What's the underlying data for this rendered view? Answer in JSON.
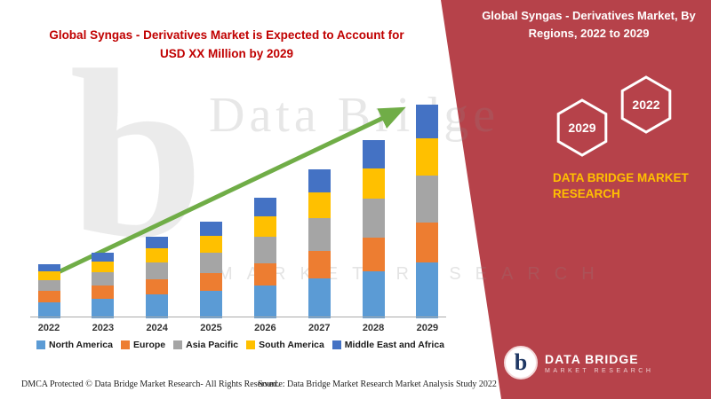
{
  "chart": {
    "title_line1": "Global Syngas - Derivatives Market is Expected to Account for",
    "title_line2": "USD XX Million by 2029"
  },
  "chart_data": {
    "type": "bar",
    "stacked": true,
    "title": "Global Syngas - Derivatives Market is Expected to Account for USD XX Million by 2029",
    "categories": [
      "2022",
      "2023",
      "2024",
      "2025",
      "2026",
      "2027",
      "2028",
      "2029"
    ],
    "series": [
      {
        "name": "North America",
        "color": "#5B9BD5",
        "values": [
          18,
          22,
          26,
          30,
          36,
          44,
          52,
          62
        ]
      },
      {
        "name": "Europe",
        "color": "#ED7D31",
        "values": [
          12,
          14,
          17,
          20,
          25,
          31,
          37,
          44
        ]
      },
      {
        "name": "Asia Pacific",
        "color": "#A5A5A5",
        "values": [
          12,
          15,
          19,
          23,
          29,
          36,
          43,
          52
        ]
      },
      {
        "name": "South America",
        "color": "#FFC000",
        "values": [
          10,
          12,
          15,
          18,
          23,
          28,
          34,
          41
        ]
      },
      {
        "name": "Middle East and Africa",
        "color": "#4472C4",
        "values": [
          8,
          10,
          13,
          16,
          20,
          26,
          31,
          37
        ]
      }
    ],
    "legend_position": "bottom",
    "grid": false,
    "trend_arrow": true,
    "trend_color": "#70AD47",
    "ylim_note": "values in unspecified USD XX Million units, estimated from bar pixel heights"
  },
  "banner": {
    "title": "Global Syngas - Derivatives Market, By Regions, 2022 to 2029",
    "hexagon_left": "2029",
    "hexagon_right": "2022",
    "brand_text": "DATA BRIDGE MARKET RESEARCH",
    "accent_color": "#FFC000",
    "background_color": "#B6424A"
  },
  "logo": {
    "glyph": "b",
    "title": "DATA BRIDGE",
    "subtitle": "MARKET RESEARCH"
  },
  "watermark": {
    "glyph": "b",
    "text": "Data Bridge",
    "subtext": "MARKET RESEARCH"
  },
  "footer": {
    "left": "DMCA Protected © Data Bridge Market Research- All Rights Reserved.",
    "source": "Source: Data Bridge Market Research Market Analysis Study 2022"
  }
}
